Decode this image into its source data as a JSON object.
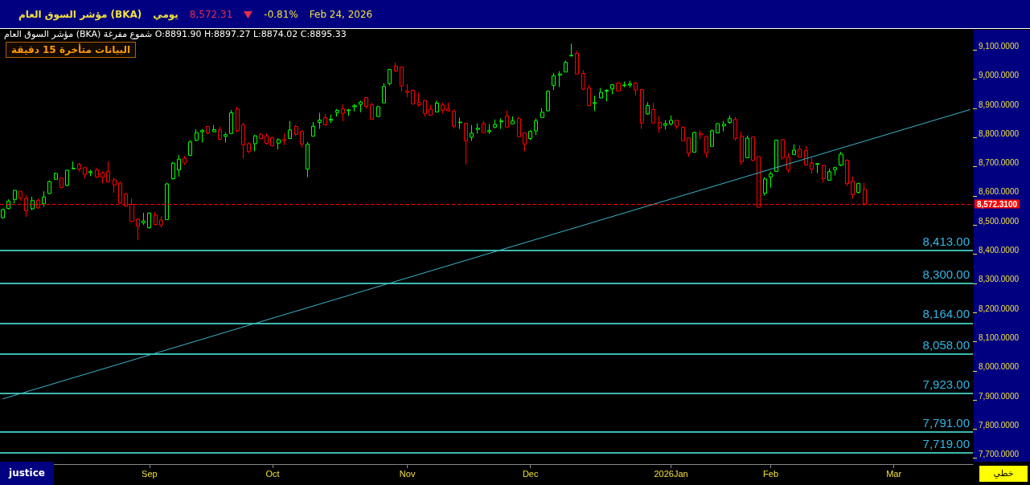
{
  "chart_data": {
    "type": "candlestick",
    "title": "مؤشر السوق العام (BKA)",
    "subtitle": "مؤشر السوق العام (BKA) شموع مفرغة O:8891.90 H:8897.27 L:8874.02 C:8895.33",
    "annotations": [
      "يومي",
      "8,572.31",
      "-0.81%",
      "Feb 24, 2026",
      "البيانات متأخرة 15 دقيقة",
      "justice",
      "خطي"
    ],
    "categories": [
      null,
      null,
      null,
      null,
      null,
      null,
      null,
      null,
      null,
      null,
      null,
      null,
      null,
      null,
      null,
      null,
      null,
      null,
      null,
      null,
      null,
      null,
      null,
      null,
      null,
      "Sep",
      null,
      null,
      null,
      null,
      null,
      null,
      null,
      null,
      null,
      null,
      null,
      null,
      null,
      null,
      null,
      null,
      null,
      null,
      null,
      null,
      "Oct",
      null,
      null,
      null,
      null,
      null,
      null,
      null,
      null,
      null,
      null,
      null,
      null,
      null,
      null,
      null,
      null,
      null,
      null,
      null,
      null,
      null,
      null,
      "Nov",
      null,
      null,
      null,
      null,
      null,
      null,
      null,
      null,
      null,
      null,
      null,
      null,
      null,
      null,
      null,
      null,
      null,
      null,
      null,
      null,
      "Dec",
      null,
      null,
      null,
      null,
      null,
      null,
      null,
      null,
      null,
      null,
      null,
      null,
      null,
      null,
      null,
      null,
      null,
      null,
      null,
      null,
      null,
      null,
      null,
      "2026Jan",
      null,
      null,
      null,
      null,
      null,
      null,
      null,
      null,
      null,
      null,
      null,
      null,
      null,
      null,
      null,
      null,
      "Feb",
      null,
      null,
      null,
      null,
      null,
      null,
      null,
      null,
      null,
      null,
      null,
      null,
      null,
      null,
      null,
      null,
      null,
      null,
      null,
      null,
      "Mar",
      null,
      null,
      null,
      null,
      null,
      null,
      null,
      null,
      null,
      null,
      null,
      null,
      null
    ],
    "series": [
      {
        "ohlc": [
          [
            8525,
            8556,
            8522,
            8553
          ],
          [
            8557,
            8588,
            8554,
            8582
          ],
          [
            8588,
            8620,
            8574,
            8619
          ],
          [
            8616,
            8616,
            8584,
            8593
          ],
          [
            8591,
            8602,
            8528,
            8549
          ],
          [
            8556,
            8597,
            8551,
            8584
          ],
          [
            8585,
            8591,
            8556,
            8559
          ],
          [
            8573,
            8616,
            8563,
            8596
          ],
          [
            8608,
            8653,
            8606,
            8649
          ],
          [
            8657,
            8680,
            8655,
            8677
          ],
          [
            8661,
            8664,
            8626,
            8629
          ],
          [
            8636,
            8689,
            8633,
            8688
          ],
          [
            8693,
            8718,
            8693,
            8695
          ],
          [
            8708,
            8713,
            8683,
            8692
          ],
          [
            8697,
            8699,
            8659,
            8674
          ],
          [
            8680,
            8689,
            8668,
            8683
          ],
          [
            8689,
            8696,
            8661,
            8665
          ],
          [
            8678,
            8685,
            8643,
            8664
          ],
          [
            8683,
            8718,
            8646,
            8648
          ],
          [
            8655,
            8662,
            8611,
            8637
          ],
          [
            8644,
            8650,
            8574,
            8576
          ],
          [
            8606,
            8611,
            8563,
            8565
          ],
          [
            8571,
            8591,
            8510,
            8513
          ],
          [
            8520,
            8524,
            8448,
            8496
          ],
          [
            8508,
            8542,
            8501,
            8514
          ],
          [
            8491,
            8543,
            8488,
            8541
          ],
          [
            8534,
            8545,
            8499,
            8502
          ],
          [
            8517,
            8531,
            8491,
            8500
          ],
          [
            8519,
            8645,
            8517,
            8641
          ],
          [
            8659,
            8716,
            8656,
            8712
          ],
          [
            8689,
            8740,
            8666,
            8726
          ],
          [
            8729,
            8737,
            8706,
            8713
          ],
          [
            8739,
            8791,
            8737,
            8785
          ],
          [
            8791,
            8829,
            8788,
            8817
          ],
          [
            8820,
            8829,
            8783,
            8824
          ],
          [
            8838,
            8839,
            8811,
            8816
          ],
          [
            8820,
            8843,
            8820,
            8827
          ],
          [
            8827,
            8838,
            8792,
            8794
          ],
          [
            8804,
            8817,
            8783,
            8810
          ],
          [
            8814,
            8895,
            8812,
            8885
          ],
          [
            8898,
            8906,
            8818,
            8823
          ],
          [
            8843,
            8851,
            8728,
            8775
          ],
          [
            8779,
            8784,
            8747,
            8752
          ],
          [
            8779,
            8809,
            8753,
            8806
          ],
          [
            8810,
            8816,
            8794,
            8797
          ],
          [
            8806,
            8814,
            8777,
            8780
          ],
          [
            8799,
            8803,
            8770,
            8772
          ],
          [
            8781,
            8797,
            8759,
            8793
          ],
          [
            8793,
            8814,
            8775,
            8790
          ],
          [
            8797,
            8857,
            8795,
            8826
          ],
          [
            8838,
            8843,
            8805,
            8811
          ],
          [
            8821,
            8827,
            8766,
            8778
          ],
          [
            8692,
            8784,
            8664,
            8777
          ],
          [
            8805,
            8853,
            8804,
            8839
          ],
          [
            8852,
            8885,
            8830,
            8860
          ],
          [
            8868,
            8881,
            8840,
            8844
          ],
          [
            8859,
            8879,
            8850,
            8863
          ],
          [
            8886,
            8898,
            8872,
            8893
          ],
          [
            8898,
            8915,
            8855,
            8883
          ],
          [
            8892,
            8898,
            8875,
            8895
          ],
          [
            8906,
            8915,
            8890,
            8909
          ],
          [
            8914,
            8926,
            8887,
            8922
          ],
          [
            8937,
            8937,
            8901,
            8907
          ],
          [
            8912,
            8920,
            8863,
            8863
          ],
          [
            8872,
            8909,
            8871,
            8906
          ],
          [
            8919,
            8986,
            8918,
            8975
          ],
          [
            8985,
            9034,
            8979,
            9034
          ],
          [
            9045,
            9058,
            9026,
            9028
          ],
          [
            9042,
            9044,
            8957,
            8977
          ],
          [
            8959,
            8984,
            8938,
            8955
          ],
          [
            8962,
            8965,
            8913,
            8916
          ],
          [
            8920,
            8954,
            8906,
            8912
          ],
          [
            8927,
            8929,
            8872,
            8883
          ],
          [
            8897,
            8912,
            8877,
            8877
          ],
          [
            8888,
            8926,
            8887,
            8918
          ],
          [
            8912,
            8920,
            8883,
            8894
          ],
          [
            8898,
            8920,
            8889,
            8892
          ],
          [
            8890,
            8897,
            8832,
            8839
          ],
          [
            8851,
            8868,
            8830,
            8853
          ],
          [
            8849,
            8851,
            8708,
            8789
          ],
          [
            8801,
            8843,
            8789,
            8815
          ],
          [
            8828,
            8849,
            8814,
            8832
          ],
          [
            8848,
            8857,
            8817,
            8817
          ],
          [
            8820,
            8846,
            8813,
            8824
          ],
          [
            8836,
            8862,
            8832,
            8845
          ],
          [
            8854,
            8866,
            8830,
            8857
          ],
          [
            8874,
            8893,
            8836,
            8836
          ],
          [
            8847,
            8873,
            8846,
            8857
          ],
          [
            8865,
            8871,
            8803,
            8803
          ],
          [
            8816,
            8816,
            8753,
            8778
          ],
          [
            8797,
            8825,
            8792,
            8821
          ],
          [
            8823,
            8866,
            8808,
            8857
          ],
          [
            8869,
            8901,
            8868,
            8887
          ],
          [
            8892,
            8962,
            8890,
            8959
          ],
          [
            8979,
            9021,
            8963,
            9012
          ],
          [
            9014,
            9028,
            8973,
            9018
          ],
          [
            9025,
            9064,
            9024,
            9058
          ],
          [
            9080,
            9122,
            9080,
            9082
          ],
          [
            9089,
            9097,
            9018,
            9018
          ],
          [
            9020,
            9031,
            8963,
            8966
          ],
          [
            8970,
            8981,
            8908,
            8910
          ],
          [
            8917,
            8943,
            8891,
            8920
          ],
          [
            8936,
            8970,
            8934,
            8955
          ],
          [
            8959,
            8966,
            8924,
            8962
          ],
          [
            8967,
            8984,
            8949,
            8981
          ],
          [
            8986,
            8992,
            8960,
            8960
          ],
          [
            8978,
            8992,
            8973,
            8980
          ],
          [
            8980,
            8995,
            8972,
            8984
          ],
          [
            8987,
            8992,
            8944,
            8963
          ],
          [
            8965,
            8967,
            8830,
            8850
          ],
          [
            8881,
            8921,
            8879,
            8910
          ],
          [
            8896,
            8919,
            8850,
            8850
          ],
          [
            8851,
            8874,
            8816,
            8833
          ],
          [
            8842,
            8860,
            8828,
            8848
          ],
          [
            8847,
            8876,
            8841,
            8859
          ],
          [
            8859,
            8859,
            8830,
            8839
          ],
          [
            8835,
            8839,
            8789,
            8789
          ],
          [
            8799,
            8801,
            8734,
            8747
          ],
          [
            8750,
            8820,
            8750,
            8817
          ],
          [
            8814,
            8825,
            8794,
            8809
          ],
          [
            8804,
            8806,
            8731,
            8747
          ],
          [
            8770,
            8828,
            8770,
            8823
          ],
          [
            8816,
            8848,
            8816,
            8848
          ],
          [
            8840,
            8857,
            8821,
            8846
          ],
          [
            8852,
            8876,
            8847,
            8865
          ],
          [
            8862,
            8871,
            8789,
            8797
          ],
          [
            8805,
            8821,
            8706,
            8717
          ],
          [
            8731,
            8807,
            8731,
            8798
          ],
          [
            8802,
            8804,
            8719,
            8722
          ],
          [
            8735,
            8735,
            8561,
            8561
          ],
          [
            8609,
            8664,
            8601,
            8658
          ],
          [
            8665,
            8683,
            8628,
            8675
          ],
          [
            8684,
            8793,
            8684,
            8791
          ],
          [
            8793,
            8793,
            8725,
            8731
          ],
          [
            8733,
            8747,
            8680,
            8689
          ],
          [
            8742,
            8777,
            8742,
            8757
          ],
          [
            8760,
            8774,
            8733,
            8733
          ],
          [
            8755,
            8771,
            8706,
            8706
          ],
          [
            8713,
            8730,
            8676,
            8692
          ],
          [
            8708,
            8711,
            8678,
            8711
          ],
          [
            8705,
            8705,
            8645,
            8659
          ],
          [
            8654,
            8694,
            8652,
            8683
          ],
          [
            8690,
            8700,
            8670,
            8697
          ],
          [
            8706,
            8751,
            8702,
            8743
          ],
          [
            8722,
            8725,
            8634,
            8642
          ],
          [
            8650,
            8666,
            8590,
            8604
          ],
          [
            8612,
            8643,
            8609,
            8643
          ],
          [
            8622,
            8644,
            8567,
            8572.31
          ],
          null,
          null,
          null,
          null,
          null,
          null,
          null,
          null,
          null,
          null,
          null,
          null,
          null,
          null,
          null,
          null,
          null,
          null
        ],
        "colors": [
          "#00ff00",
          "#00ff00",
          "#00ff00",
          "#ff0000",
          "#ff0000",
          "#00ff00",
          "#ff0000",
          "#00ff00",
          "#00ff00",
          "#00ff00",
          "#ff0000",
          "#00ff00",
          "#00ff00",
          "#ff0000",
          "#ff0000",
          "#00ff00",
          "#ff0000",
          "#ff0000",
          "#ff0000",
          "#ff0000",
          "#ff0000",
          "#ff0000",
          "#ff0000",
          "#ff0000",
          "#00ff00",
          "#00ff00",
          "#ff0000",
          "#ff0000",
          "#00ff00",
          "#00ff00",
          "#00ff00",
          "#ff0000",
          "#00ff00",
          "#00ff00",
          "#00ff00",
          "#ff0000",
          "#00ff00",
          "#ff0000",
          "#00ff00",
          "#00ff00",
          "#ff0000",
          "#ff0000",
          "#ff0000",
          "#00ff00",
          "#ff0000",
          "#ff0000",
          "#ff0000",
          "#00ff00",
          "#ff0000",
          "#00ff00",
          "#ff0000",
          "#ff0000",
          "#00ff00",
          "#00ff00",
          "#00ff00",
          "#ff0000",
          "#00ff00",
          "#00ff00",
          "#ff0000",
          "#00ff00",
          "#00ff00",
          "#00ff00",
          "#ff0000",
          "#ff0000",
          "#00ff00",
          "#00ff00",
          "#00ff00",
          "#ff0000",
          "#ff0000",
          "#ff0000",
          "#ff0000",
          "#ff0000",
          "#ff0000",
          "#ff0000",
          "#00ff00",
          "#ff0000",
          "#ff0000",
          "#ff0000",
          "#00ff00",
          "#ff0000",
          "#00ff00",
          "#00ff00",
          "#ff0000",
          "#00ff00",
          "#00ff00",
          "#00ff00",
          "#ff0000",
          "#00ff00",
          "#ff0000",
          "#ff0000",
          "#00ff00",
          "#00ff00",
          "#00ff00",
          "#00ff00",
          "#00ff00",
          "#00ff00",
          "#00ff00",
          "#00ff00",
          "#ff0000",
          "#ff0000",
          "#ff0000",
          "#00ff00",
          "#00ff00",
          "#00ff00",
          "#00ff00",
          "#ff0000",
          "#00ff00",
          "#00ff00",
          "#ff0000",
          "#ff0000",
          "#00ff00",
          "#ff0000",
          "#ff0000",
          "#00ff00",
          "#00ff00",
          "#ff0000",
          "#ff0000",
          "#ff0000",
          "#00ff00",
          "#ff0000",
          "#ff0000",
          "#00ff00",
          "#00ff00",
          "#00ff00",
          "#00ff00",
          "#ff0000",
          "#ff0000",
          "#00ff00",
          "#ff0000",
          "#ff0000",
          "#00ff00",
          "#00ff00",
          "#00ff00",
          "#ff0000",
          "#ff0000",
          "#00ff00",
          "#ff0000",
          "#ff0000",
          "#ff0000",
          "#00ff00",
          "#ff0000",
          "#00ff00",
          "#00ff00",
          "#00ff00",
          "#ff0000",
          "#ff0000",
          "#00ff00",
          "#ff0000",
          null,
          null,
          null,
          null,
          null,
          null,
          null,
          null,
          null,
          null,
          null,
          null,
          null,
          null,
          null,
          null,
          null,
          null
        ]
      },
      {
        "type": "line",
        "color": "#3cb4c8",
        "values": [
          7904,
          null,
          null,
          null,
          null,
          null,
          null,
          null,
          null,
          null,
          null,
          null,
          null,
          null,
          null,
          null,
          null,
          null,
          null,
          null,
          null,
          null,
          null,
          null,
          null,
          null,
          null,
          null,
          null,
          null,
          null,
          null,
          null,
          null,
          null,
          null,
          null,
          null,
          null,
          null,
          null,
          null,
          null,
          null,
          null,
          null,
          null,
          null,
          null,
          null,
          null,
          null,
          null,
          null,
          null,
          null,
          null,
          null,
          null,
          null,
          null,
          null,
          null,
          null,
          null,
          null,
          null,
          null,
          null,
          null,
          null,
          null,
          null,
          null,
          null,
          null,
          null,
          null,
          null,
          null,
          null,
          null,
          null,
          null,
          null,
          null,
          null,
          null,
          null,
          null,
          null,
          null,
          null,
          null,
          null,
          null,
          null,
          null,
          null,
          null,
          null,
          null,
          null,
          null,
          null,
          null,
          null,
          null,
          null,
          null,
          null,
          null,
          null,
          null,
          null,
          null,
          null,
          null,
          null,
          null,
          null,
          null,
          null,
          null,
          null,
          null,
          null,
          null,
          null,
          null,
          null,
          null,
          null,
          null,
          null,
          null,
          null,
          null,
          null,
          null,
          null,
          null,
          null,
          null,
          null,
          null,
          null,
          null,
          null,
          null,
          null,
          null,
          null,
          null,
          null,
          null,
          null,
          null,
          null,
          null,
          null,
          null,
          null,
          null,
          null,
          8896
        ]
      }
    ],
    "marker": "none",
    "ylim": [
      7680,
      9170
    ],
    "yticks": [
      {
        "value": 7700,
        "label": "7,700.0000"
      },
      {
        "value": 7800,
        "label": "7,800.0000"
      },
      {
        "value": 7900,
        "label": "7,900.0000"
      },
      {
        "value": 8000,
        "label": "8,000.0000"
      },
      {
        "value": 8100,
        "label": "8,100.0000"
      },
      {
        "value": 8200,
        "label": "8,200.0000"
      },
      {
        "value": 8300,
        "label": "8,300.0000"
      },
      {
        "value": 8400,
        "label": "8,400.0000"
      },
      {
        "value": 8500,
        "label": "8,500.0000"
      },
      {
        "value": 8600,
        "label": "8,600.0000"
      },
      {
        "value": 8700,
        "label": "8,700.0000"
      },
      {
        "value": 8800,
        "label": "8,800.0000"
      },
      {
        "value": 8900,
        "label": "8,900.0000"
      },
      {
        "value": 9000,
        "label": "9,000.0000"
      },
      {
        "value": 9100,
        "label": "9,100.0000"
      }
    ],
    "ref_lines": [
      {
        "axis": "y",
        "value": 8572.31,
        "label": "8,572.3100",
        "color": "#ff0000",
        "line_style": "dashed"
      },
      {
        "axis": "y",
        "value": 8413,
        "label": "8,413.00",
        "color": "#3cb8b0"
      },
      {
        "axis": "y",
        "value": 8300,
        "label": "8,300.00",
        "color": "#3cb8b0"
      },
      {
        "axis": "y",
        "value": 8164,
        "label": "8,164.00",
        "color": "#3cb8b0"
      },
      {
        "axis": "y",
        "value": 8058,
        "label": "8,058.00",
        "color": "#3cb8b0"
      },
      {
        "axis": "y",
        "value": 7923,
        "label": "7,923.00",
        "color": "#3cb8b0"
      },
      {
        "axis": "y",
        "value": 7791,
        "label": "7,791.00",
        "color": "#3cb8b0"
      },
      {
        "axis": "y",
        "value": 7719,
        "label": "7,719.00",
        "color": "#3cb8b0"
      }
    ]
  }
}
